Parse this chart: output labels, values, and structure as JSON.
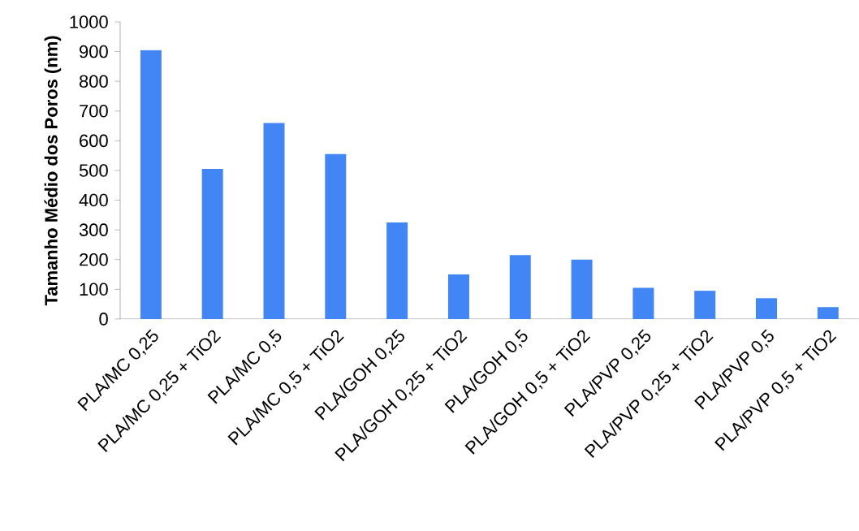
{
  "chart_data": {
    "type": "bar",
    "ylabel": "Tamanho Médio dos Poros (nm)",
    "categories": [
      "PLA/MC 0,25",
      "PLA/MC 0,25 + TiO2",
      "PLA/MC 0,5",
      "PLA/MC 0,5 + TiO2",
      "PLA/GOH 0,25",
      "PLA/GOH 0,25 + TiO2",
      "PLA/GOH 0,5",
      "PLA/GOH 0,5 + TiO2",
      "PLA/PVP 0,25",
      "PLA/PVP 0,25 + TiO2",
      "PLA/PVP 0,5",
      "PLA/PVP 0,5 + TiO2"
    ],
    "values": [
      905,
      505,
      660,
      555,
      325,
      150,
      215,
      200,
      105,
      95,
      70,
      40
    ],
    "color": "#4285f4",
    "ylim": [
      0,
      1000
    ],
    "yticks": [
      0,
      100,
      200,
      300,
      400,
      500,
      600,
      700,
      800,
      900,
      1000
    ],
    "grid": false
  }
}
